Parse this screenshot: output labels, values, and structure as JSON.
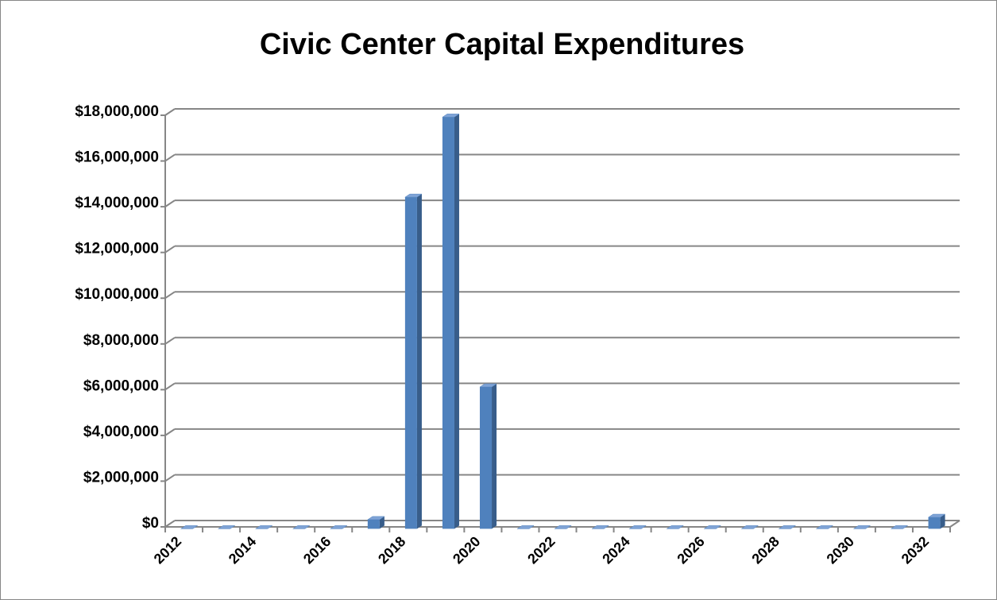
{
  "chart_data": {
    "type": "bar3d",
    "title": "Civic Center Capital Expenditures",
    "categories": [
      "2012",
      null,
      "2014",
      null,
      "2016",
      null,
      "2018",
      null,
      "2020",
      null,
      "2022",
      null,
      "2024",
      null,
      "2026",
      null,
      "2028",
      null,
      "2030",
      null,
      "2032"
    ],
    "values": [
      0,
      0,
      0,
      0,
      0,
      400000,
      14500000,
      18000000,
      6200000,
      0,
      0,
      0,
      0,
      0,
      0,
      0,
      0,
      0,
      0,
      0,
      500000
    ],
    "color": "#4f81bd",
    "ylim": [
      0,
      18000000
    ],
    "yticks": [
      {
        "value": 0,
        "label": "$0"
      },
      {
        "value": 2000000,
        "label": "$2,000,000"
      },
      {
        "value": 4000000,
        "label": "$4,000,000"
      },
      {
        "value": 6000000,
        "label": "$6,000,000"
      },
      {
        "value": 8000000,
        "label": "$8,000,000"
      },
      {
        "value": 10000000,
        "label": "$10,000,000"
      },
      {
        "value": 12000000,
        "label": "$12,000,000"
      },
      {
        "value": 14000000,
        "label": "$14,000,000"
      },
      {
        "value": 16000000,
        "label": "$16,000,000"
      },
      {
        "value": 18000000,
        "label": "$18,000,000"
      }
    ],
    "grid": true
  }
}
